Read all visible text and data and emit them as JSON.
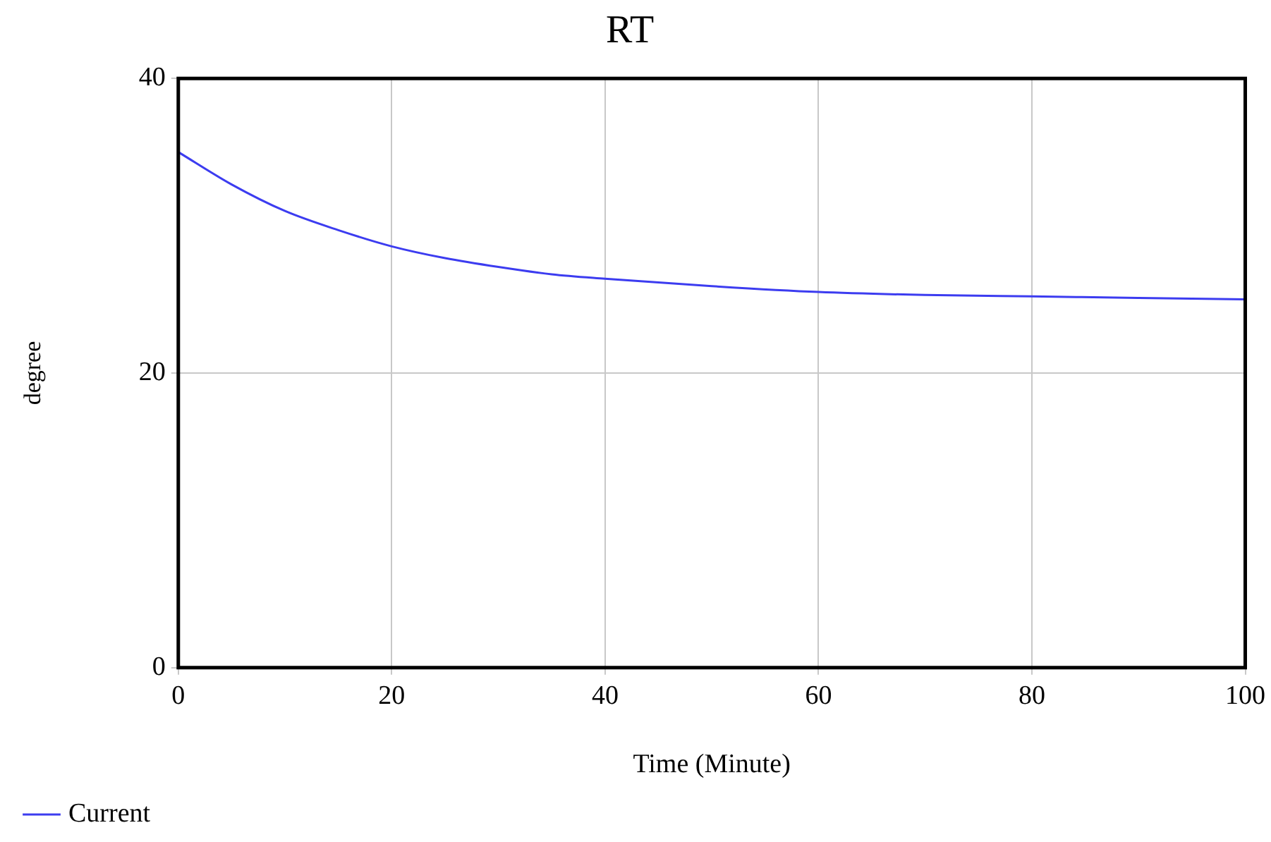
{
  "chart_data": {
    "type": "line",
    "title": "RT",
    "xlabel": "Time (Minute)",
    "ylabel": "degree",
    "series": [
      {
        "name": "Current",
        "color": "#3c3cf0",
        "x": [
          0,
          5,
          10,
          15,
          20,
          25,
          30,
          35,
          40,
          50,
          60,
          70,
          80,
          90,
          100
        ],
        "values": [
          35,
          32.8,
          31.0,
          29.7,
          28.6,
          27.8,
          27.2,
          26.7,
          26.4,
          25.9,
          25.5,
          25.3,
          25.2,
          25.1,
          25.0
        ]
      }
    ],
    "xlim": [
      0,
      100
    ],
    "xticks": [
      0,
      20,
      40,
      60,
      80,
      100
    ],
    "ylim": [
      0,
      40
    ],
    "yticks": [
      0,
      20,
      40
    ],
    "grid": true,
    "legend": "bottom left",
    "marker": "none",
    "line_style": "solid"
  }
}
